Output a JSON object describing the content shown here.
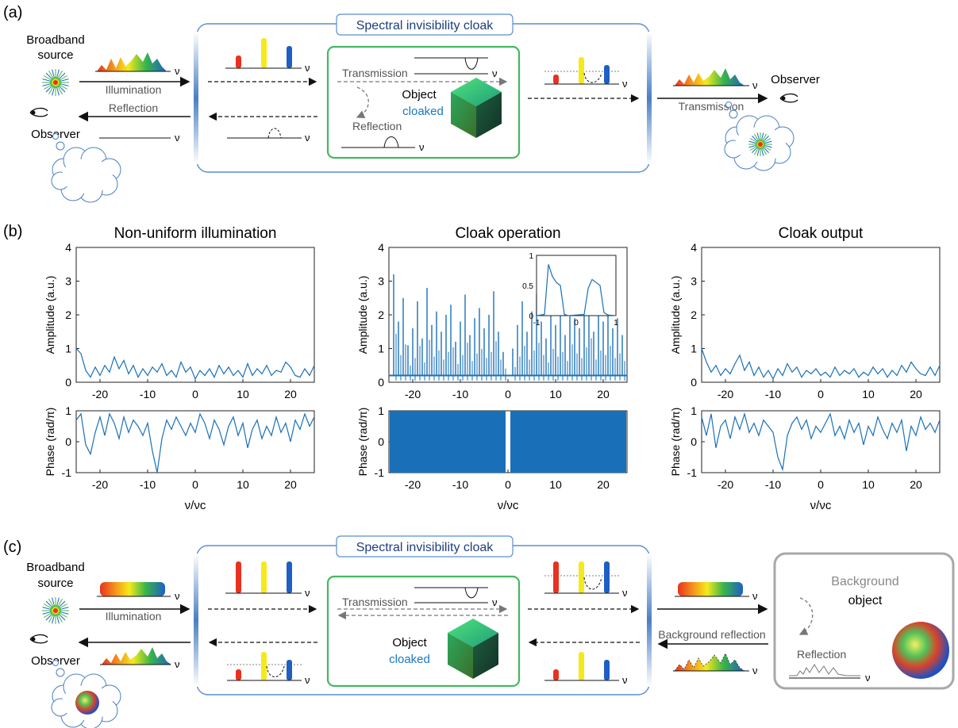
{
  "panel_labels": {
    "a": "(a)",
    "b": "(b)",
    "c": "(c)"
  },
  "colors": {
    "cloak_border": "#5a8fd0",
    "cloak_title": "#1d3f7a",
    "object_border": "#44b861",
    "cloaked_text": "#1a78c2",
    "plot_line": "#1a70b8",
    "gray_text": "#555555",
    "red": "#e8321f",
    "yellow": "#f5e91c",
    "blue": "#1f5fc4",
    "background_box": "#a8a8a8"
  },
  "panel_a": {
    "source_label_1": "Broadband",
    "source_label_2": "source",
    "illumination": "Illumination",
    "reflection_left": "Reflection",
    "observer_left": "Observer",
    "cloak_title": "Spectral invisibility cloak",
    "transmission_inner": "Transmission",
    "reflection_inner": "Reflection",
    "object": "Object",
    "cloaked": "cloaked",
    "transmission_right": "Transmission",
    "observer_right": "Observer",
    "nu": "ν"
  },
  "panel_b": {
    "titles": [
      "Non-uniform illumination",
      "Cloak operation",
      "Cloak output"
    ],
    "amp_label": "Amplitude (a.u.)",
    "phase_label": "Phase (rad/π)",
    "x_label": "ν/νc",
    "x_ticks": [
      "-20",
      "-10",
      "0",
      "10",
      "20"
    ],
    "amp_ticks": [
      "0",
      "1",
      "2",
      "3",
      "4"
    ],
    "phase_ticks": [
      "-1",
      "0",
      "1"
    ],
    "inset_x_ticks": [
      "-1",
      "0",
      "1"
    ],
    "inset_y_ticks": [
      "0",
      "0.5",
      "1"
    ]
  },
  "panel_c": {
    "source_label_1": "Broadband",
    "source_label_2": "source",
    "illumination": "Illumination",
    "observer_left": "Observer",
    "cloak_title": "Spectral invisibility cloak",
    "transmission_inner": "Transmission",
    "object": "Object",
    "cloaked": "cloaked",
    "background_reflection": "Background reflection",
    "background": "Background",
    "bg_object": "object",
    "reflection": "Reflection",
    "nu": "ν"
  },
  "chart_data": [
    {
      "type": "line",
      "title": "Non-uniform illumination",
      "xlabel": "",
      "ylabel": "Amplitude (a.u.)",
      "xlim": [
        -25,
        25
      ],
      "ylim": [
        0,
        4
      ],
      "x": [
        -25,
        -24,
        -23,
        -22,
        -21,
        -20,
        -19,
        -18,
        -17,
        -16,
        -15,
        -14,
        -13,
        -12,
        -11,
        -10,
        -9,
        -8,
        -7,
        -6,
        -5,
        -4,
        -3,
        -2,
        -1,
        0,
        1,
        2,
        3,
        4,
        5,
        6,
        7,
        8,
        9,
        10,
        11,
        12,
        13,
        14,
        15,
        16,
        17,
        18,
        19,
        20,
        21,
        22,
        23,
        24,
        25
      ],
      "values": [
        1.0,
        0.85,
        0.35,
        0.15,
        0.45,
        0.2,
        0.5,
        0.3,
        0.75,
        0.4,
        0.65,
        0.25,
        0.5,
        0.15,
        0.4,
        0.2,
        0.45,
        0.3,
        0.55,
        0.2,
        0.35,
        0.15,
        0.6,
        0.3,
        0.45,
        0.1,
        0.35,
        0.2,
        0.4,
        0.15,
        0.5,
        0.25,
        0.45,
        0.2,
        0.35,
        0.15,
        0.55,
        0.2,
        0.4,
        0.25,
        0.5,
        0.2,
        0.35,
        0.3,
        0.6,
        0.45,
        0.2,
        0.15,
        0.4,
        0.2,
        0.5
      ]
    },
    {
      "type": "line",
      "title": "",
      "xlabel": "ν/νc",
      "ylabel": "Phase (rad/π)",
      "xlim": [
        -25,
        25
      ],
      "ylim": [
        -1,
        1
      ],
      "x": [
        -25,
        -24,
        -23,
        -22,
        -21,
        -20,
        -19,
        -18,
        -17,
        -16,
        -15,
        -14,
        -13,
        -12,
        -11,
        -10,
        -9,
        -8,
        -7,
        -6,
        -5,
        -4,
        -3,
        -2,
        -1,
        0,
        1,
        2,
        3,
        4,
        5,
        6,
        7,
        8,
        9,
        10,
        11,
        12,
        13,
        14,
        15,
        16,
        17,
        18,
        19,
        20,
        21,
        22,
        23,
        24,
        25
      ],
      "values": [
        0.7,
        0.9,
        -0.1,
        -0.4,
        0.3,
        0.8,
        0.2,
        0.9,
        0.6,
        0.1,
        0.8,
        0.3,
        0.7,
        0.5,
        0.2,
        0.6,
        -0.3,
        -1.0,
        0.1,
        0.7,
        0.4,
        0.8,
        0.5,
        0.2,
        0.6,
        0.3,
        0.9,
        0.6,
        0.1,
        0.7,
        0.4,
        -0.1,
        0.5,
        0.8,
        0.2,
        0.6,
        -0.2,
        0.4,
        0.7,
        0.1,
        0.5,
        0.2,
        0.8,
        0.3,
        0.6,
        0.0,
        0.7,
        0.4,
        0.9,
        0.5,
        0.8
      ]
    },
    {
      "type": "line",
      "title": "Cloak operation",
      "xlabel": "",
      "ylabel": "Amplitude (a.u.)",
      "xlim": [
        -25,
        25
      ],
      "ylim": [
        0,
        4
      ],
      "x": [
        -24,
        -23,
        -22,
        -21,
        -20,
        -19,
        -18,
        -17,
        -16,
        -15,
        -14,
        -13,
        -12,
        -11,
        -10,
        -9,
        -8,
        -7,
        -6,
        -5,
        -4,
        -3,
        -2,
        -1,
        1,
        2,
        3,
        4,
        5,
        6,
        7,
        8,
        9,
        10,
        11,
        12,
        13,
        14,
        15,
        16,
        17,
        18,
        19,
        20,
        21,
        22,
        23,
        24
      ],
      "values": [
        3.2,
        1.8,
        2.5,
        1.1,
        1.6,
        2.4,
        1.3,
        2.8,
        1.7,
        2.1,
        1.5,
        2.0,
        2.3,
        1.2,
        1.8,
        2.6,
        1.4,
        1.9,
        2.2,
        1.6,
        2.0,
        2.7,
        1.5,
        0.9,
        1.0,
        1.7,
        2.4,
        1.5,
        2.1,
        2.6,
        1.8,
        1.3,
        2.2,
        1.7,
        2.0,
        1.4,
        2.5,
        1.9,
        1.6,
        2.3,
        2.9,
        1.5,
        2.1,
        1.8,
        2.4,
        1.6,
        1.9,
        1.4
      ],
      "inset": {
        "xlim": [
          -1,
          1
        ],
        "ylim": [
          0,
          1
        ],
        "x": [
          -1,
          -0.8,
          -0.7,
          -0.6,
          -0.5,
          -0.4,
          -0.3,
          -0.2,
          0,
          0.2,
          0.3,
          0.4,
          0.5,
          0.6,
          0.7,
          0.8,
          1
        ],
        "values": [
          0.0,
          0.02,
          0.85,
          0.65,
          0.55,
          0.5,
          0.02,
          0.0,
          0.01,
          0.02,
          0.45,
          0.6,
          0.55,
          0.5,
          0.05,
          0.01,
          0.0
        ]
      }
    },
    {
      "type": "area",
      "title": "",
      "xlabel": "ν/νc",
      "ylabel": "Phase (rad/π)",
      "xlim": [
        -25,
        25
      ],
      "ylim": [
        -1,
        1
      ],
      "series": [
        {
          "values_range": [
            -1,
            1
          ],
          "gap_x": [
            -0.5,
            0.5
          ]
        }
      ]
    },
    {
      "type": "line",
      "title": "Cloak output",
      "xlabel": "",
      "ylabel": "Amplitude (a.u.)",
      "xlim": [
        -25,
        25
      ],
      "ylim": [
        0,
        4
      ],
      "x": [
        -25,
        -24,
        -23,
        -22,
        -21,
        -20,
        -19,
        -18,
        -17,
        -16,
        -15,
        -14,
        -13,
        -12,
        -11,
        -10,
        -9,
        -8,
        -7,
        -6,
        -5,
        -4,
        -3,
        -2,
        -1,
        0,
        1,
        2,
        3,
        4,
        5,
        6,
        7,
        8,
        9,
        10,
        11,
        12,
        13,
        14,
        15,
        16,
        17,
        18,
        19,
        20,
        21,
        22,
        23,
        24,
        25
      ],
      "values": [
        1.0,
        0.6,
        0.3,
        0.5,
        0.2,
        0.4,
        0.25,
        0.55,
        0.8,
        0.35,
        0.6,
        0.2,
        0.45,
        0.15,
        0.35,
        0.1,
        0.4,
        0.2,
        0.55,
        0.3,
        0.45,
        0.15,
        0.35,
        0.25,
        0.4,
        0.2,
        0.3,
        0.15,
        0.45,
        0.2,
        0.35,
        0.25,
        0.4,
        0.15,
        0.3,
        0.2,
        0.45,
        0.25,
        0.4,
        0.15,
        0.35,
        0.2,
        0.5,
        0.3,
        0.6,
        0.4,
        0.25,
        0.2,
        0.45,
        0.2,
        0.5
      ]
    },
    {
      "type": "line",
      "title": "",
      "xlabel": "ν/νc",
      "ylabel": "Phase (rad/π)",
      "xlim": [
        -25,
        25
      ],
      "ylim": [
        -1,
        1
      ],
      "x": [
        -25,
        -24,
        -23,
        -22,
        -21,
        -20,
        -19,
        -18,
        -17,
        -16,
        -15,
        -14,
        -13,
        -12,
        -11,
        -10,
        -9,
        -8,
        -7,
        -6,
        -5,
        -4,
        -3,
        -2,
        -1,
        0,
        1,
        2,
        3,
        4,
        5,
        6,
        7,
        8,
        9,
        10,
        11,
        12,
        13,
        14,
        15,
        16,
        17,
        18,
        19,
        20,
        21,
        22,
        23,
        24,
        25
      ],
      "values": [
        0.8,
        0.2,
        0.9,
        -0.2,
        0.5,
        0.7,
        0.1,
        0.8,
        0.4,
        0.9,
        0.3,
        0.6,
        0.2,
        0.7,
        0.5,
        0.3,
        -0.5,
        -0.9,
        0.2,
        0.6,
        0.8,
        0.4,
        0.7,
        0.1,
        0.5,
        0.3,
        0.6,
        0.9,
        0.2,
        0.5,
        0.1,
        0.7,
        0.3,
        0.6,
        -0.1,
        0.5,
        0.2,
        0.8,
        0.4,
        0.1,
        0.6,
        0.3,
        0.7,
        -0.3,
        0.5,
        0.2,
        0.8,
        0.4,
        0.6,
        0.3,
        0.7
      ]
    }
  ]
}
